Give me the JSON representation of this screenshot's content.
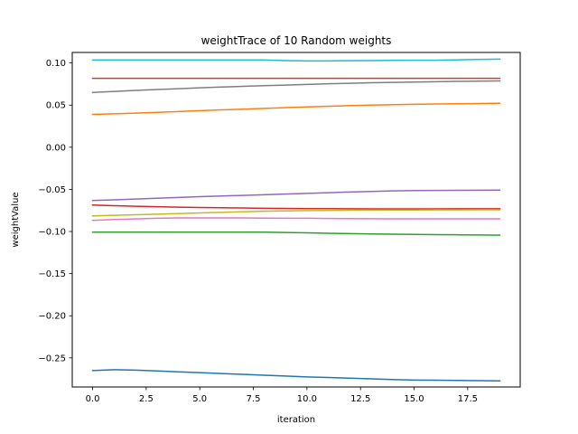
{
  "chart_data": {
    "type": "line",
    "title": "weightTrace of 10 Random weights",
    "xlabel": "iteration",
    "ylabel": "weightValue",
    "xlim": [
      -0.95,
      19.95
    ],
    "ylim": [
      -0.2845,
      0.1125
    ],
    "xticks": [
      0.0,
      2.5,
      5.0,
      7.5,
      10.0,
      12.5,
      15.0,
      17.5
    ],
    "xtick_labels": [
      "0.0",
      "2.5",
      "5.0",
      "7.5",
      "10.0",
      "12.5",
      "15.0",
      "17.5"
    ],
    "yticks": [
      0.1,
      0.05,
      0.0,
      -0.05,
      -0.1,
      -0.15,
      -0.2,
      -0.25
    ],
    "ytick_labels": [
      "0.10",
      "0.05",
      "0.00",
      "−0.05",
      "−0.10",
      "−0.15",
      "−0.20",
      "−0.25"
    ],
    "grid": false,
    "x": [
      0,
      1,
      2,
      3,
      4,
      5,
      6,
      7,
      8,
      9,
      10,
      11,
      12,
      13,
      14,
      15,
      16,
      17,
      18,
      19
    ],
    "series": [
      {
        "color": "#1f77b4",
        "values": [
          -0.265,
          -0.264,
          -0.2645,
          -0.2655,
          -0.2665,
          -0.2675,
          -0.2685,
          -0.2695,
          -0.2705,
          -0.2715,
          -0.2725,
          -0.2733,
          -0.2741,
          -0.2749,
          -0.2757,
          -0.2763,
          -0.2765,
          -0.2767,
          -0.277,
          -0.2772
        ]
      },
      {
        "color": "#ff7f0e",
        "values": [
          0.039,
          0.0397,
          0.0405,
          0.0414,
          0.0424,
          0.0434,
          0.0443,
          0.0452,
          0.0461,
          0.047,
          0.0479,
          0.0487,
          0.0494,
          0.05,
          0.0505,
          0.0509,
          0.0513,
          0.0516,
          0.0519,
          0.0523
        ]
      },
      {
        "color": "#2ca02c",
        "values": [
          -0.1008,
          -0.1008,
          -0.1008,
          -0.1008,
          -0.1008,
          -0.1008,
          -0.1008,
          -0.1008,
          -0.1008,
          -0.1012,
          -0.1016,
          -0.1021,
          -0.1025,
          -0.1029,
          -0.1032,
          -0.1035,
          -0.1037,
          -0.1039,
          -0.1041,
          -0.1043
        ]
      },
      {
        "color": "#d62728",
        "values": [
          -0.0686,
          -0.0694,
          -0.0701,
          -0.0706,
          -0.0711,
          -0.0715,
          -0.0718,
          -0.0721,
          -0.0724,
          -0.0726,
          -0.0728,
          -0.0729,
          -0.073,
          -0.0731,
          -0.0731,
          -0.0731,
          -0.0731,
          -0.073,
          -0.073,
          -0.073
        ]
      },
      {
        "color": "#9467bd",
        "values": [
          -0.0632,
          -0.0624,
          -0.0614,
          -0.0605,
          -0.0596,
          -0.0587,
          -0.0579,
          -0.0571,
          -0.0563,
          -0.0555,
          -0.0547,
          -0.0539,
          -0.0531,
          -0.0524,
          -0.0518,
          -0.0514,
          -0.0512,
          -0.0511,
          -0.051,
          -0.0509
        ]
      },
      {
        "color": "#8c564b",
        "values": [
          0.0818,
          0.0818,
          0.0818,
          0.0818,
          0.0818,
          0.0818,
          0.0818,
          0.0818,
          0.0818,
          0.0818,
          0.0818,
          0.0818,
          0.0818,
          0.0818,
          0.0818,
          0.0818,
          0.0818,
          0.0818,
          0.0818,
          0.0818
        ]
      },
      {
        "color": "#e377c2",
        "values": [
          -0.0868,
          -0.0858,
          -0.085,
          -0.0842,
          -0.0838,
          -0.0838,
          -0.0838,
          -0.0839,
          -0.0841,
          -0.0842,
          -0.0843,
          -0.0845,
          -0.0847,
          -0.0848,
          -0.0849,
          -0.0849,
          -0.0849,
          -0.0849,
          -0.0849,
          -0.0849
        ]
      },
      {
        "color": "#7f7f7f",
        "values": [
          0.065,
          0.0662,
          0.0674,
          0.0685,
          0.0695,
          0.0705,
          0.0714,
          0.0722,
          0.073,
          0.0738,
          0.0746,
          0.0753,
          0.0759,
          0.0765,
          0.077,
          0.0774,
          0.0778,
          0.0781,
          0.0784,
          0.0787
        ]
      },
      {
        "color": "#bcbd22",
        "values": [
          -0.0815,
          -0.0808,
          -0.0801,
          -0.0794,
          -0.0787,
          -0.078,
          -0.0773,
          -0.0766,
          -0.076,
          -0.0755,
          -0.0752,
          -0.075,
          -0.0748,
          -0.0746,
          -0.0745,
          -0.0744,
          -0.0743,
          -0.0743,
          -0.0742,
          -0.0742
        ]
      },
      {
        "color": "#17becf",
        "values": [
          0.1035,
          0.1035,
          0.1035,
          0.1035,
          0.1035,
          0.1035,
          0.1035,
          0.1035,
          0.1035,
          0.1029,
          0.1025,
          0.1025,
          0.1027,
          0.1029,
          0.1031,
          0.1032,
          0.1033,
          0.1037,
          0.1042,
          0.1046
        ]
      }
    ]
  }
}
